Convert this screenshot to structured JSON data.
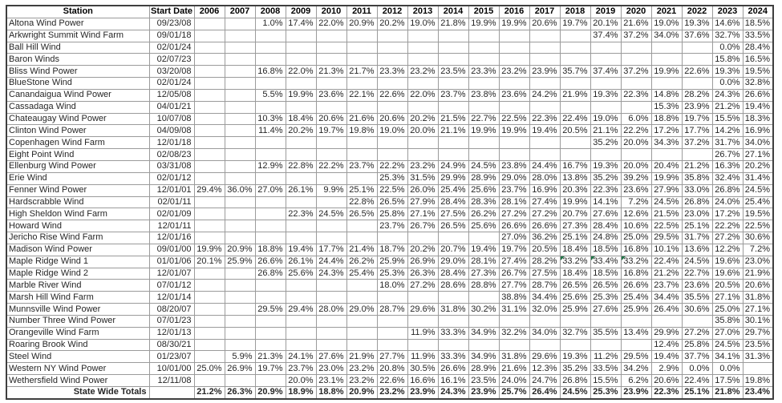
{
  "table": {
    "flag_color": "#217346",
    "columns": [
      "Station",
      "Start Date",
      "2006",
      "2007",
      "2008",
      "2009",
      "2010",
      "2011",
      "2012",
      "2013",
      "2014",
      "2015",
      "2016",
      "2017",
      "2018",
      "2019",
      "2020",
      "2021",
      "2022",
      "2023",
      "2024"
    ],
    "rows": [
      {
        "station": "Altona Wind Power",
        "start_date": "09/23/08",
        "values": [
          "",
          "",
          "1.0%",
          "17.4%",
          "22.0%",
          "20.9%",
          "20.2%",
          "19.0%",
          "21.8%",
          "19.9%",
          "19.9%",
          "20.6%",
          "19.7%",
          "20.1%",
          "21.6%",
          "19.0%",
          "19.3%",
          "14.6%",
          "18.5%"
        ]
      },
      {
        "station": "Arkwright Summit Wind Farm",
        "start_date": "09/01/18",
        "values": [
          "",
          "",
          "",
          "",
          "",
          "",
          "",
          "",
          "",
          "",
          "",
          "",
          "",
          "37.4%",
          "37.2%",
          "34.0%",
          "37.6%",
          "32.7%",
          "33.5%"
        ]
      },
      {
        "station": "Ball Hill Wind",
        "start_date": "02/01/24",
        "values": [
          "",
          "",
          "",
          "",
          "",
          "",
          "",
          "",
          "",
          "",
          "",
          "",
          "",
          "",
          "",
          "",
          "",
          "0.0%",
          "28.4%"
        ]
      },
      {
        "station": "Baron Winds",
        "start_date": "02/07/23",
        "values": [
          "",
          "",
          "",
          "",
          "",
          "",
          "",
          "",
          "",
          "",
          "",
          "",
          "",
          "",
          "",
          "",
          "",
          "15.8%",
          "16.5%"
        ]
      },
      {
        "station": "Bliss Wind Power",
        "start_date": "03/20/08",
        "values": [
          "",
          "",
          "16.8%",
          "22.0%",
          "21.3%",
          "21.7%",
          "23.3%",
          "23.2%",
          "23.5%",
          "23.3%",
          "23.2%",
          "23.9%",
          "35.7%",
          "37.4%",
          "37.2%",
          "19.9%",
          "22.6%",
          "19.3%",
          "19.5%"
        ]
      },
      {
        "station": "BlueStone Wind",
        "start_date": "02/01/24",
        "values": [
          "",
          "",
          "",
          "",
          "",
          "",
          "",
          "",
          "",
          "",
          "",
          "",
          "",
          "",
          "",
          "",
          "",
          "0.0%",
          "32.8%"
        ]
      },
      {
        "station": "Canandaigua Wind Power",
        "start_date": "12/05/08",
        "values": [
          "",
          "",
          "5.5%",
          "19.9%",
          "23.6%",
          "22.1%",
          "22.6%",
          "22.0%",
          "23.7%",
          "23.8%",
          "23.6%",
          "24.2%",
          "21.9%",
          "19.3%",
          "22.3%",
          "14.8%",
          "28.2%",
          "24.3%",
          "26.6%"
        ]
      },
      {
        "station": "Cassadaga Wind",
        "start_date": "04/01/21",
        "values": [
          "",
          "",
          "",
          "",
          "",
          "",
          "",
          "",
          "",
          "",
          "",
          "",
          "",
          "",
          "",
          "15.3%",
          "23.9%",
          "21.2%",
          "19.4%"
        ]
      },
      {
        "station": "Chateaugay Wind Power",
        "start_date": "10/07/08",
        "values": [
          "",
          "",
          "10.3%",
          "18.4%",
          "20.6%",
          "21.6%",
          "20.6%",
          "20.2%",
          "21.5%",
          "22.7%",
          "22.5%",
          "22.3%",
          "22.4%",
          "19.0%",
          "6.0%",
          "18.8%",
          "19.7%",
          "15.5%",
          "18.3%"
        ]
      },
      {
        "station": "Clinton Wind Power",
        "start_date": "04/09/08",
        "values": [
          "",
          "",
          "11.4%",
          "20.2%",
          "19.7%",
          "19.8%",
          "19.0%",
          "20.0%",
          "21.1%",
          "19.9%",
          "19.9%",
          "19.4%",
          "20.5%",
          "21.1%",
          "22.2%",
          "17.2%",
          "17.7%",
          "14.2%",
          "16.9%"
        ]
      },
      {
        "station": "Copenhagen Wind Farm",
        "start_date": "12/01/18",
        "values": [
          "",
          "",
          "",
          "",
          "",
          "",
          "",
          "",
          "",
          "",
          "",
          "",
          "",
          "35.2%",
          "20.0%",
          "34.3%",
          "37.2%",
          "31.7%",
          "34.0%"
        ]
      },
      {
        "station": "Eight Point Wind",
        "start_date": "02/08/23",
        "values": [
          "",
          "",
          "",
          "",
          "",
          "",
          "",
          "",
          "",
          "",
          "",
          "",
          "",
          "",
          "",
          "",
          "",
          "26.7%",
          "27.1%"
        ]
      },
      {
        "station": "Ellenburg Wind Power",
        "start_date": "03/31/08",
        "values": [
          "",
          "",
          "12.9%",
          "22.8%",
          "22.2%",
          "23.7%",
          "22.2%",
          "23.2%",
          "24.9%",
          "24.5%",
          "23.8%",
          "24.4%",
          "16.7%",
          "19.3%",
          "20.0%",
          "20.4%",
          "21.2%",
          "16.3%",
          "20.2%"
        ]
      },
      {
        "station": "Erie Wind",
        "start_date": "02/01/12",
        "values": [
          "",
          "",
          "",
          "",
          "",
          "",
          "25.3%",
          "31.5%",
          "29.9%",
          "28.9%",
          "29.0%",
          "28.0%",
          "13.8%",
          "35.2%",
          "39.2%",
          "19.9%",
          "35.8%",
          "32.4%",
          "31.4%"
        ]
      },
      {
        "station": "Fenner Wind Power",
        "start_date": "12/01/01",
        "values": [
          "29.4%",
          "36.0%",
          "27.0%",
          "26.1%",
          "9.9%",
          "25.1%",
          "22.5%",
          "26.0%",
          "25.4%",
          "25.6%",
          "23.7%",
          "16.9%",
          "20.3%",
          "22.3%",
          "23.6%",
          "27.9%",
          "33.0%",
          "26.8%",
          "24.5%"
        ]
      },
      {
        "station": "Hardscrabble Wind",
        "start_date": "02/01/11",
        "values": [
          "",
          "",
          "",
          "",
          "",
          "22.8%",
          "26.5%",
          "27.9%",
          "28.4%",
          "28.3%",
          "28.1%",
          "27.4%",
          "19.9%",
          "14.1%",
          "7.2%",
          "24.5%",
          "26.8%",
          "24.0%",
          "25.4%"
        ]
      },
      {
        "station": "High Sheldon Wind Farm",
        "start_date": "02/01/09",
        "values": [
          "",
          "",
          "",
          "22.3%",
          "24.5%",
          "26.5%",
          "25.8%",
          "27.1%",
          "27.5%",
          "26.2%",
          "27.2%",
          "27.2%",
          "20.7%",
          "27.6%",
          "12.6%",
          "21.5%",
          "23.0%",
          "17.2%",
          "19.5%"
        ]
      },
      {
        "station": "Howard Wind",
        "start_date": "12/01/11",
        "values": [
          "",
          "",
          "",
          "",
          "",
          "",
          "23.7%",
          "26.7%",
          "26.5%",
          "25.6%",
          "26.6%",
          "26.6%",
          "27.3%",
          "28.4%",
          "10.6%",
          "22.5%",
          "25.1%",
          "22.2%",
          "22.5%"
        ]
      },
      {
        "station": "Jericho Rise Wind Farm",
        "start_date": "12/01/16",
        "values": [
          "",
          "",
          "",
          "",
          "",
          "",
          "",
          "",
          "",
          "",
          "27.0%",
          "36.2%",
          "25.1%",
          "24.8%",
          "25.0%",
          "29.5%",
          "31.7%",
          "27.2%",
          "30.6%"
        ]
      },
      {
        "station": "Madison Wind Power",
        "start_date": "09/01/00",
        "values": [
          "19.9%",
          "20.9%",
          "18.8%",
          "19.4%",
          "17.7%",
          "21.4%",
          "18.7%",
          "20.2%",
          "20.7%",
          "19.4%",
          "19.7%",
          "20.5%",
          "18.4%",
          "18.5%",
          "16.8%",
          "10.1%",
          "13.6%",
          "12.2%",
          "7.2%"
        ]
      },
      {
        "station": "Maple Ridge Wind 1",
        "start_date": "01/01/06",
        "values": [
          "20.1%",
          "25.9%",
          "26.6%",
          "26.1%",
          "24.4%",
          "26.2%",
          "25.9%",
          "26.9%",
          "29.0%",
          "28.1%",
          "27.4%",
          "28.2%",
          "33.2%",
          "33.4%",
          "33.2%",
          "22.4%",
          "24.5%",
          "19.6%",
          "23.0%"
        ],
        "flags": [
          12,
          13,
          14
        ]
      },
      {
        "station": "Maple Ridge Wind 2",
        "start_date": "12/01/07",
        "values": [
          "",
          "",
          "26.8%",
          "25.6%",
          "24.3%",
          "25.4%",
          "25.3%",
          "26.3%",
          "28.4%",
          "27.3%",
          "26.7%",
          "27.5%",
          "18.4%",
          "18.5%",
          "16.8%",
          "21.2%",
          "22.7%",
          "19.6%",
          "21.9%"
        ]
      },
      {
        "station": "Marble River Wind",
        "start_date": "07/01/12",
        "values": [
          "",
          "",
          "",
          "",
          "",
          "",
          "18.0%",
          "27.2%",
          "28.6%",
          "28.8%",
          "27.7%",
          "28.7%",
          "26.5%",
          "26.5%",
          "26.6%",
          "23.7%",
          "23.6%",
          "20.5%",
          "20.6%"
        ]
      },
      {
        "station": "Marsh Hill Wind Farm",
        "start_date": "12/01/14",
        "values": [
          "",
          "",
          "",
          "",
          "",
          "",
          "",
          "",
          "",
          "",
          "38.8%",
          "34.4%",
          "25.6%",
          "25.3%",
          "25.4%",
          "34.4%",
          "35.5%",
          "27.1%",
          "31.8%"
        ]
      },
      {
        "station": "Munnsville Wind Power",
        "start_date": "08/20/07",
        "values": [
          "",
          "",
          "29.5%",
          "29.4%",
          "28.0%",
          "29.0%",
          "28.7%",
          "29.6%",
          "31.8%",
          "30.2%",
          "31.1%",
          "32.0%",
          "25.9%",
          "27.6%",
          "25.9%",
          "26.4%",
          "30.6%",
          "25.0%",
          "27.1%"
        ]
      },
      {
        "station": "Number Three Wind Power",
        "start_date": "07/01/23",
        "values": [
          "",
          "",
          "",
          "",
          "",
          "",
          "",
          "",
          "",
          "",
          "",
          "",
          "",
          "",
          "",
          "",
          "",
          "35.8%",
          "30.1%"
        ]
      },
      {
        "station": "Orangeville Wind Farm",
        "start_date": "12/01/13",
        "values": [
          "",
          "",
          "",
          "",
          "",
          "",
          "",
          "11.9%",
          "33.3%",
          "34.9%",
          "32.2%",
          "34.0%",
          "32.7%",
          "35.5%",
          "13.4%",
          "29.9%",
          "27.2%",
          "27.0%",
          "29.7%"
        ]
      },
      {
        "station": "Roaring Brook Wind",
        "start_date": "08/30/21",
        "values": [
          "",
          "",
          "",
          "",
          "",
          "",
          "",
          "",
          "",
          "",
          "",
          "",
          "",
          "",
          "",
          "12.4%",
          "25.8%",
          "24.5%",
          "23.5%"
        ]
      },
      {
        "station": "Steel Wind",
        "start_date": "01/23/07",
        "values": [
          "",
          "5.9%",
          "21.3%",
          "24.1%",
          "27.6%",
          "21.9%",
          "27.7%",
          "11.9%",
          "33.3%",
          "34.9%",
          "31.8%",
          "29.6%",
          "19.3%",
          "11.2%",
          "29.5%",
          "19.4%",
          "37.7%",
          "34.1%",
          "31.3%"
        ]
      },
      {
        "station": "Western NY Wind Power",
        "start_date": "10/01/00",
        "values": [
          "25.0%",
          "26.9%",
          "19.7%",
          "23.7%",
          "23.0%",
          "23.2%",
          "20.8%",
          "30.5%",
          "26.6%",
          "28.9%",
          "21.6%",
          "12.3%",
          "35.2%",
          "33.5%",
          "34.2%",
          "2.9%",
          "0.0%",
          "0.0%",
          ""
        ]
      },
      {
        "station": "Wethersfield Wind Power",
        "start_date": "12/11/08",
        "values": [
          "",
          "",
          "",
          "20.0%",
          "23.1%",
          "23.2%",
          "22.6%",
          "16.6%",
          "16.1%",
          "23.5%",
          "24.0%",
          "24.7%",
          "26.8%",
          "15.5%",
          "6.2%",
          "20.6%",
          "22.4%",
          "17.5%",
          "19.8%"
        ]
      }
    ],
    "totals": {
      "label": "State Wide Totals",
      "values": [
        "21.2%",
        "26.3%",
        "20.9%",
        "18.9%",
        "18.8%",
        "20.9%",
        "23.2%",
        "23.9%",
        "24.3%",
        "23.9%",
        "25.7%",
        "26.4%",
        "24.5%",
        "25.3%",
        "23.9%",
        "22.3%",
        "25.1%",
        "21.8%",
        "23.4%"
      ]
    }
  }
}
